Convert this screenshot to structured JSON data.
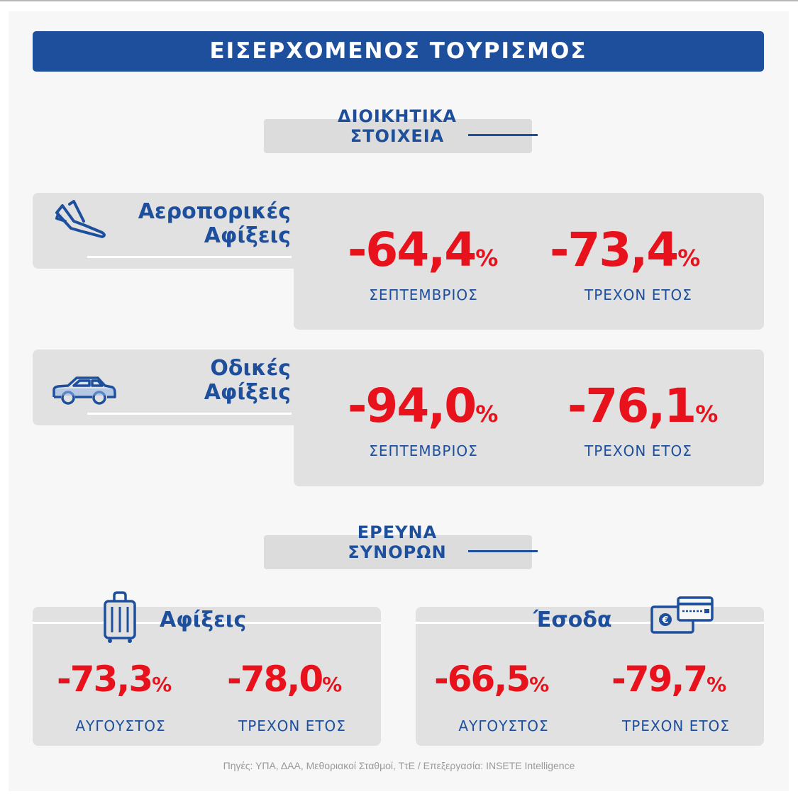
{
  "header": {
    "title": "ΕΙΣΕΡΧΟΜΕΝΟΣ ΤΟΥΡΙΣΜΟΣ"
  },
  "section_admin": {
    "line1": "ΔΙΟΙΚΗΤΙΚΑ",
    "line2": "ΣΤΟΙΧΕΙΑ"
  },
  "air": {
    "title_line1": "Αεροπορικές",
    "title_line2": "Αφίξεις",
    "icon": "airplane-landing-icon",
    "stat1": {
      "value": "-64,4",
      "unit": "%",
      "label": "ΣΕΠΤΕΜΒΡΙΟΣ"
    },
    "stat2": {
      "value": "-73,4",
      "unit": "%",
      "label": "ΤΡΕΧΟΝ ΕΤΟΣ"
    }
  },
  "road": {
    "title_line1": "Οδικές",
    "title_line2": "Αφίξεις",
    "icon": "car-icon",
    "stat1": {
      "value": "-94,0",
      "unit": "%",
      "label": "ΣΕΠΤΕΜΒΡΙΟΣ"
    },
    "stat2": {
      "value": "-76,1",
      "unit": "%",
      "label": "ΤΡΕΧΟΝ ΕΤΟΣ"
    }
  },
  "section_survey": {
    "line1": "ΕΡΕΥΝΑ",
    "line2": "ΣΥΝΟΡΩΝ"
  },
  "arrivals": {
    "title": "Αφίξεις",
    "icon": "suitcase-icon",
    "stat1": {
      "value": "-73,3",
      "unit": "%",
      "label": "ΑΥΓΟΥΣΤΟΣ"
    },
    "stat2": {
      "value": "-78,0",
      "unit": "%",
      "label": "ΤΡΕΧΟΝ ΕΤΟΣ"
    }
  },
  "revenue": {
    "title": "Έσοδα",
    "icon": "euro-card-icon",
    "stat1": {
      "value": "-66,5",
      "unit": "%",
      "label": "ΑΥΓΟΥΣΤΟΣ"
    },
    "stat2": {
      "value": "-79,7",
      "unit": "%",
      "label": "ΤΡΕΧΟΝ ΕΤΟΣ"
    }
  },
  "footer": {
    "source": "Πηγές: ΥΠΑ, ΔΑΑ, Μεθοριακοί Σταθμοί, ΤτΕ / Επεξεργασία: INSETE Intelligence"
  },
  "colors": {
    "brand": "#1d4f9c",
    "negative": "#e8121c",
    "panel": "#e1e1e1"
  }
}
